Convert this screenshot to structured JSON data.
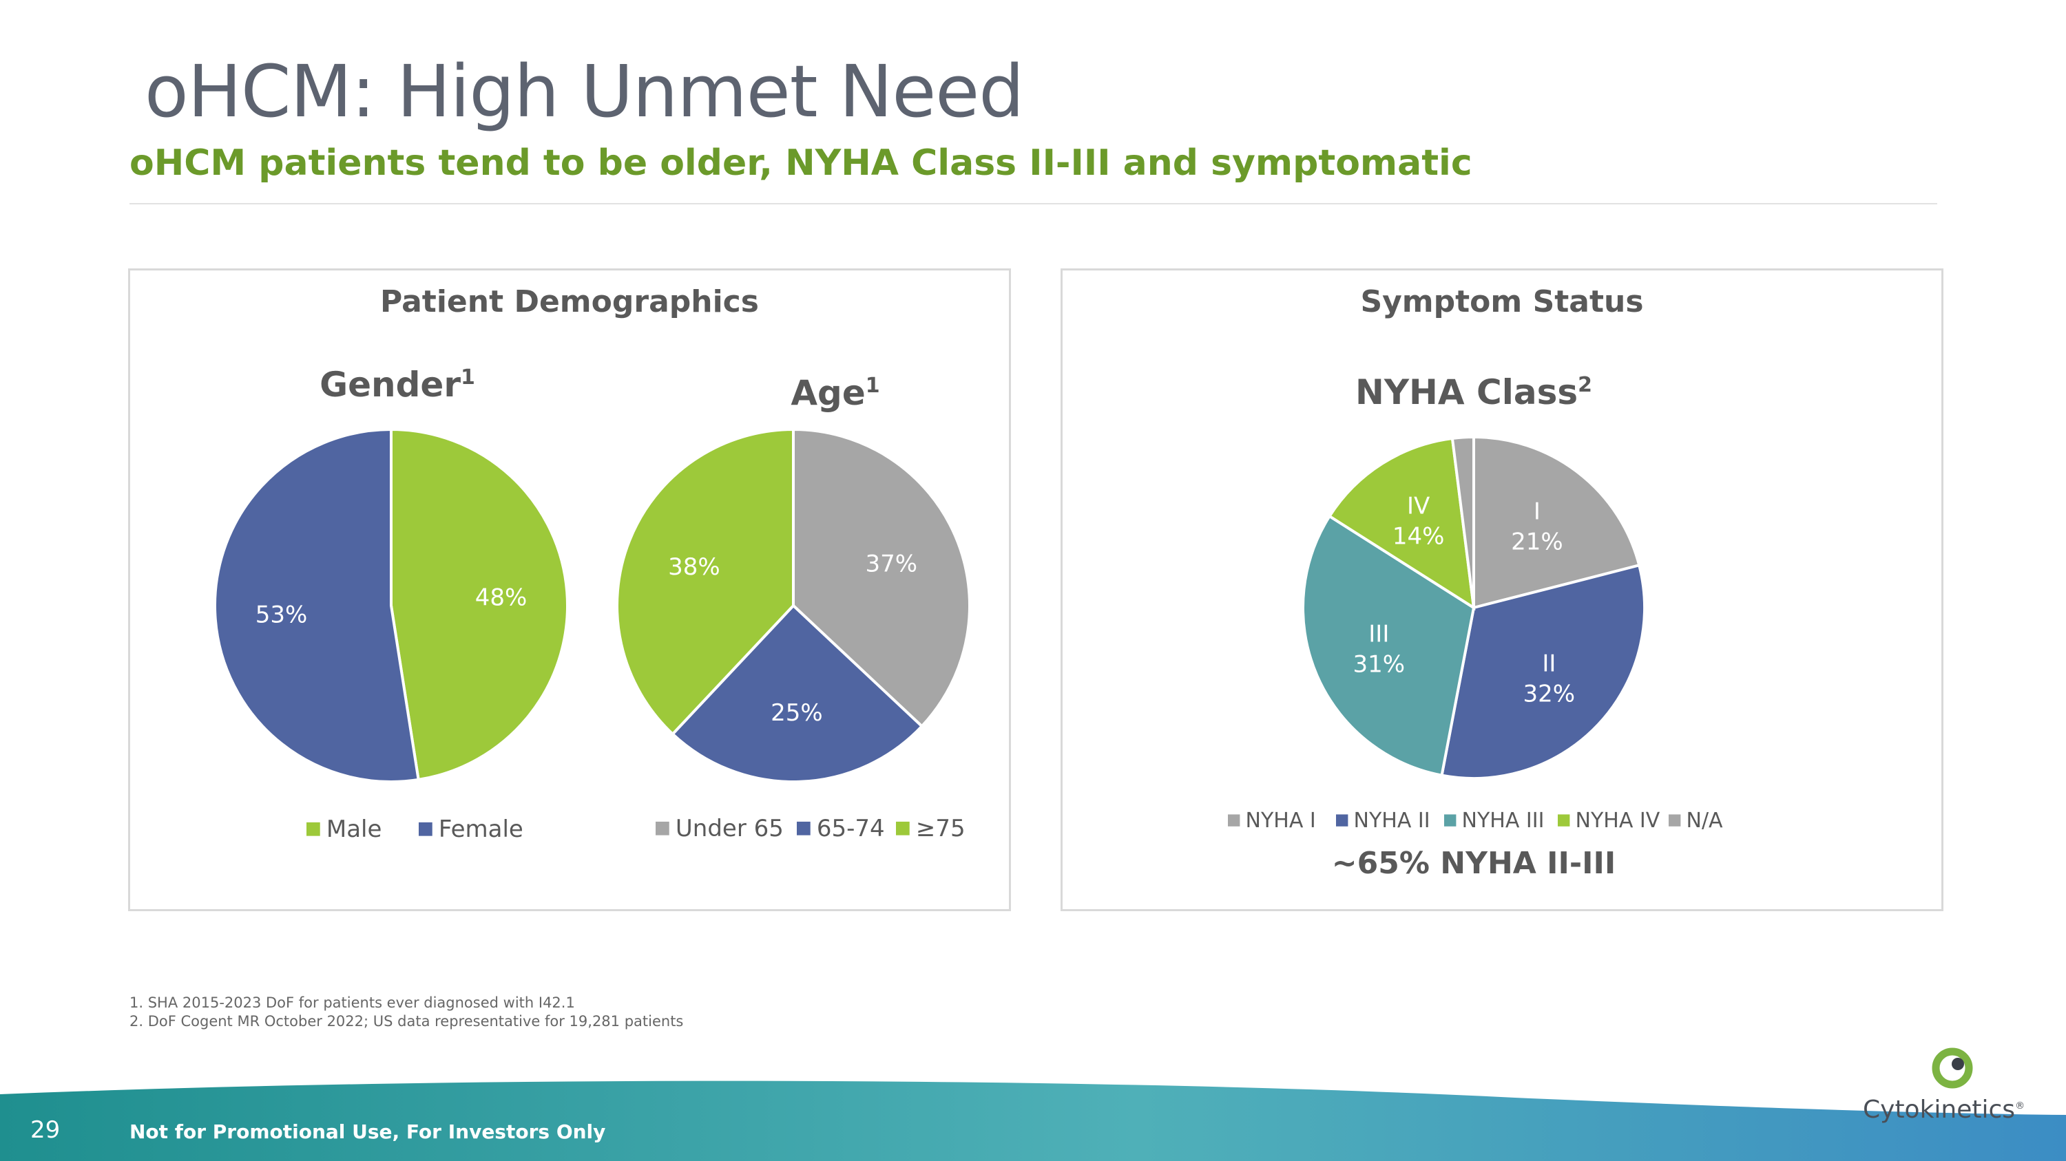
{
  "page": {
    "title": "oHCM: High Unmet Need",
    "subtitle": "oHCM patients tend to be older, NYHA Class II-III and symptomatic",
    "footnotes": [
      "1. SHA 2015-2023 DoF for patients ever diagnosed with I42.1",
      "2. DoF Cogent MR October 2022; US data representative for 19,281 patients"
    ],
    "page_number": "29",
    "footer_note": "Not for Promotional Use, For Investors Only",
    "logo_text": "Cytokinetics",
    "logo_tm": "®"
  },
  "panels": {
    "demographics_title": "Patient Demographics",
    "symptom_title": "Symptom Status",
    "symptom_summary": "~65% NYHA II-III"
  },
  "colors": {
    "green": "#9dc93a",
    "blue": "#5065a1",
    "gray": "#a6a6a6",
    "teal": "#5ba2a6",
    "title_gray": "#5d6370",
    "subtitle_green": "#6b9a2a"
  },
  "chart_data": [
    {
      "type": "pie",
      "title": "Gender",
      "title_sup": "1",
      "categories": [
        "Male",
        "Female"
      ],
      "values": [
        48,
        53
      ],
      "labels": [
        "48%",
        "53%"
      ],
      "legend": "bottom"
    },
    {
      "type": "pie",
      "title": "Age",
      "title_sup": "1",
      "categories": [
        "Under 65",
        "65-74",
        "≥75"
      ],
      "values": [
        37,
        25,
        38
      ],
      "labels": [
        "37%",
        "25%",
        "38%"
      ],
      "legend": "bottom"
    },
    {
      "type": "pie",
      "title": "NYHA Class",
      "title_sup": "2",
      "categories": [
        "NYHA I",
        "NYHA II",
        "NYHA III",
        "NYHA IV",
        "N/A"
      ],
      "values": [
        21,
        32,
        31,
        14,
        2
      ],
      "slice_names": [
        "I",
        "II",
        "III",
        "IV",
        ""
      ],
      "labels": [
        "21%",
        "32%",
        "31%",
        "14%",
        ""
      ],
      "legend": "bottom"
    }
  ]
}
